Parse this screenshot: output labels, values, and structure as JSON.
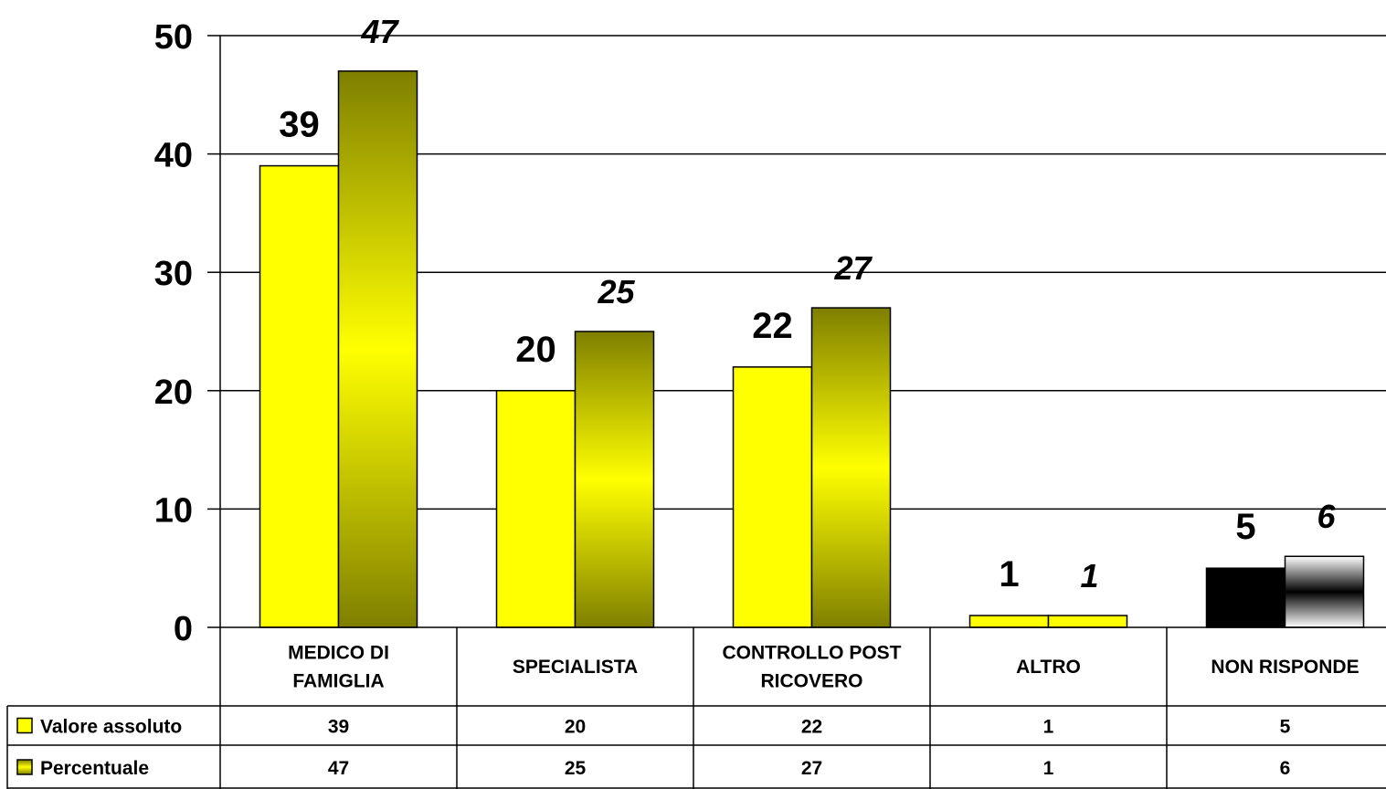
{
  "chart_data": {
    "type": "bar",
    "categories": [
      [
        "MEDICO DI",
        "FAMIGLIA"
      ],
      [
        "SPECIALISTA"
      ],
      [
        "CONTROLLO POST",
        "RICOVERO"
      ],
      [
        "ALTRO"
      ],
      [
        "NON RISPONDE"
      ]
    ],
    "series": [
      {
        "name": "Valore assoluto",
        "values": [
          39,
          20,
          22,
          1,
          5
        ]
      },
      {
        "name": "Percentuale",
        "values": [
          47,
          25,
          27,
          1,
          6
        ]
      }
    ],
    "ylim": [
      0,
      50
    ],
    "yticks": [
      0,
      10,
      20,
      30,
      40,
      50
    ],
    "grid": true,
    "legend": "data-table",
    "data_table": true
  },
  "colors": {
    "yellow": "#ffff00",
    "olive": "#7f7f00",
    "black": "#000000",
    "white": "#ffffff"
  }
}
